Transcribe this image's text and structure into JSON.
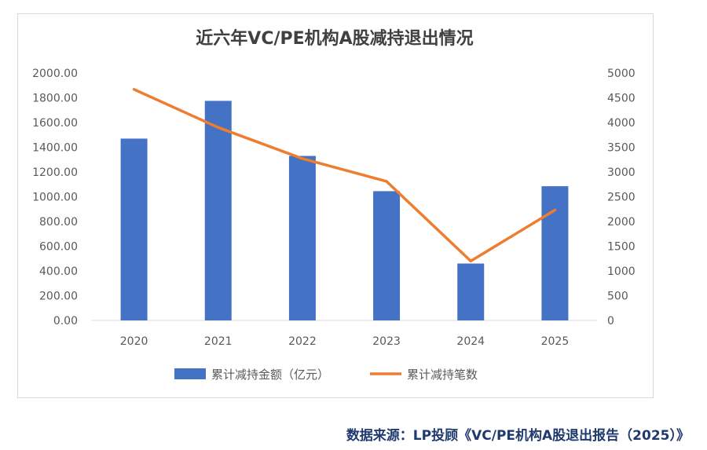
{
  "chart_data": {
    "type": "bar",
    "title": "近六年VC/PE机构A股减持退出情况",
    "categories": [
      "2020",
      "2021",
      "2022",
      "2023",
      "2024",
      "2025"
    ],
    "series": [
      {
        "name": "累计减持金额（亿元）",
        "kind": "bar",
        "axis": "left",
        "color": "#4472C4",
        "values": [
          1470,
          1775,
          1330,
          1045,
          460,
          1085
        ]
      },
      {
        "name": "累计减持笔数",
        "kind": "line",
        "axis": "right",
        "color": "#ED7D31",
        "values": [
          4670,
          3900,
          3270,
          2810,
          1200,
          2230
        ]
      }
    ],
    "y_left": {
      "min": 0,
      "max": 2000,
      "step": 200,
      "tick_labels": [
        "0.00",
        "200.00",
        "400.00",
        "600.00",
        "800.00",
        "1000.00",
        "1200.00",
        "1400.00",
        "1600.00",
        "1800.00",
        "2000.00"
      ]
    },
    "y_right": {
      "min": 0,
      "max": 5000,
      "step": 500,
      "tick_labels": [
        "0",
        "500",
        "1000",
        "1500",
        "2000",
        "2500",
        "3000",
        "3500",
        "4000",
        "4500",
        "5000"
      ]
    },
    "legend_position": "bottom",
    "grid": false
  },
  "source_text": "数据来源：LP投顾《VC/PE机构A股退出报告（2025）》"
}
